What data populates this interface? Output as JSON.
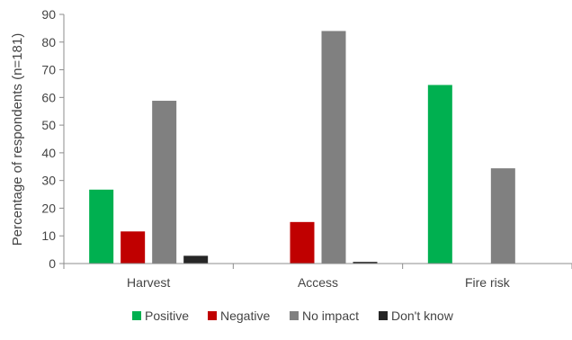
{
  "chart_data": {
    "type": "bar",
    "title": "",
    "xlabel": "",
    "ylabel": "Percentage of respondents (n=181)",
    "ylim": [
      0,
      90
    ],
    "yticks": [
      0,
      10,
      20,
      30,
      40,
      50,
      60,
      70,
      80,
      90
    ],
    "grid": false,
    "legend_position": "bottom",
    "categories": [
      "Harvest",
      "Access",
      "Fire risk"
    ],
    "series": [
      {
        "name": "Positive",
        "color": "#00b050",
        "values": [
          26.7,
          0,
          64.5
        ]
      },
      {
        "name": "Negative",
        "color": "#c00000",
        "values": [
          11.6,
          15.0,
          0
        ]
      },
      {
        "name": "No impact",
        "color": "#808080",
        "values": [
          58.8,
          84.0,
          34.4
        ]
      },
      {
        "name": "Don't know",
        "color": "#262626",
        "values": [
          2.8,
          0.6,
          0
        ]
      }
    ]
  }
}
